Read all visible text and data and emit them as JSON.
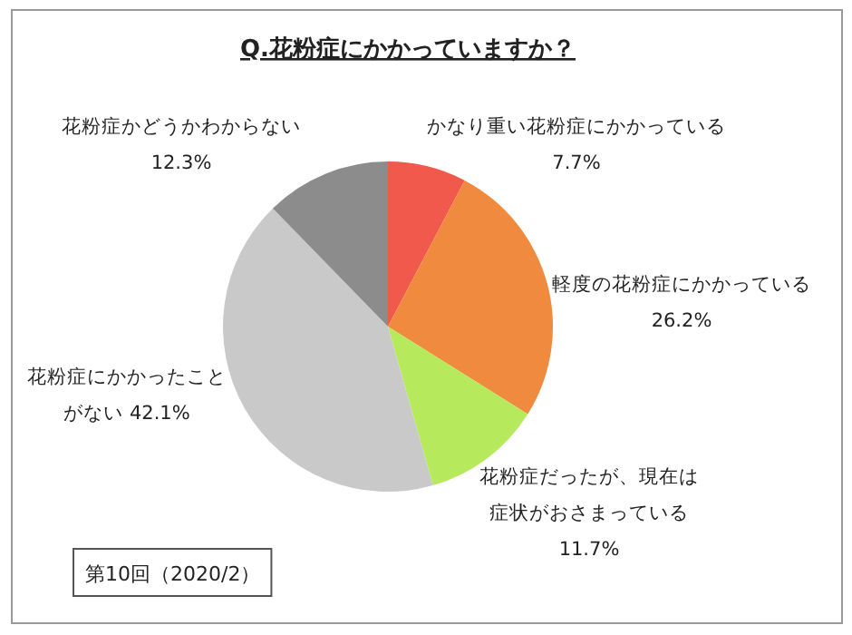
{
  "chart_data": {
    "type": "pie",
    "title": "Q.花粉症にかかっていますか？",
    "categories": [
      "かなり重い花粉症にかかっている",
      "軽度の花粉症にかかっている",
      "花粉症だったが、現在は症状がおさまっている",
      "花粉症にかかったことがない",
      "花粉症かどうかわからない"
    ],
    "values": [
      7.7,
      26.2,
      11.7,
      42.1,
      12.3
    ],
    "value_labels": [
      "7.7%",
      "26.2%",
      "11.7%",
      "42.1%",
      "12.3%"
    ],
    "colors": [
      "#f0594b",
      "#f08a3e",
      "#b6ea5c",
      "#c9c9c9",
      "#8c8c8c"
    ],
    "annotations": [
      "第10回（2020/2）"
    ]
  }
}
